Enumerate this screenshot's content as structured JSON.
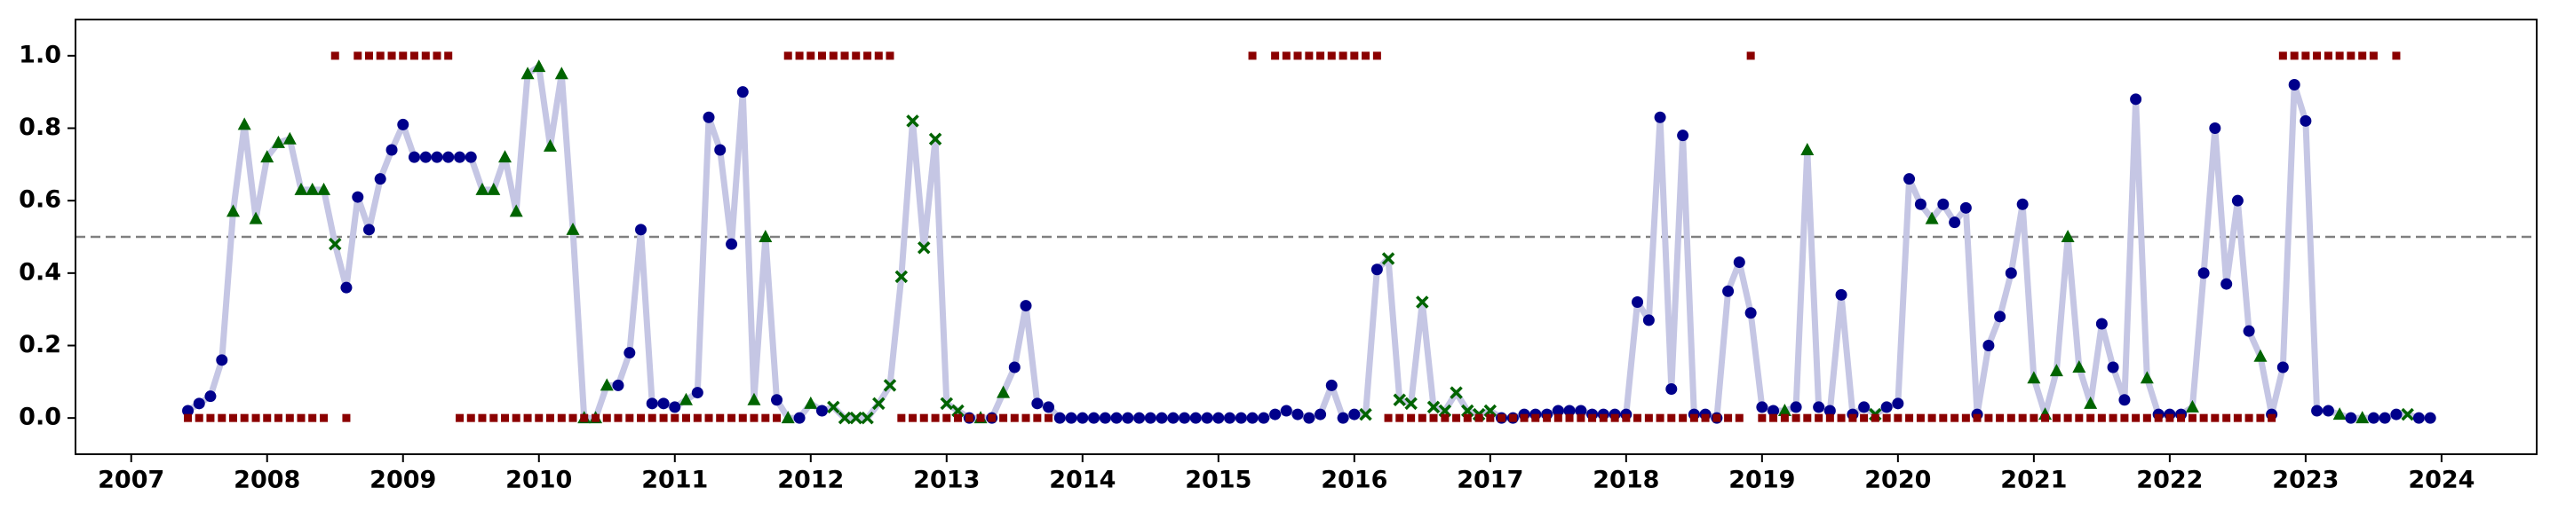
{
  "chart_data": {
    "type": "line",
    "xlim": [
      2006.59,
      2024.7
    ],
    "ylim": [
      -0.1,
      1.1
    ],
    "xticks": [
      2007,
      2008,
      2009,
      2010,
      2011,
      2012,
      2013,
      2014,
      2015,
      2016,
      2017,
      2018,
      2019,
      2020,
      2021,
      2022,
      2023,
      2024
    ],
    "yticks": [
      {
        "value": 0,
        "label": "0.0"
      },
      {
        "value": 0.2,
        "label": "0.2"
      },
      {
        "value": 0.4,
        "label": "0.4"
      },
      {
        "value": 0.6,
        "label": "0.6"
      },
      {
        "value": 0.8,
        "label": "0.8"
      },
      {
        "value": 1,
        "label": "1.0"
      }
    ],
    "threshold": 0.5,
    "threshold_color": "#808080",
    "x": [
      2007.417,
      2007.5,
      2007.583,
      2007.667,
      2007.75,
      2007.833,
      2007.917,
      2008,
      2008.083,
      2008.167,
      2008.25,
      2008.333,
      2008.417,
      2008.5,
      2008.583,
      2008.667,
      2008.75,
      2008.833,
      2008.917,
      2009,
      2009.083,
      2009.167,
      2009.25,
      2009.333,
      2009.417,
      2009.5,
      2009.583,
      2009.667,
      2009.75,
      2009.833,
      2009.917,
      2010,
      2010.083,
      2010.167,
      2010.25,
      2010.333,
      2010.417,
      2010.5,
      2010.583,
      2010.667,
      2010.75,
      2010.833,
      2010.917,
      2011,
      2011.083,
      2011.167,
      2011.25,
      2011.333,
      2011.417,
      2011.5,
      2011.583,
      2011.667,
      2011.75,
      2011.833,
      2011.917,
      2012,
      2012.083,
      2012.167,
      2012.25,
      2012.333,
      2012.417,
      2012.5,
      2012.583,
      2012.667,
      2012.75,
      2012.833,
      2012.917,
      2013,
      2013.083,
      2013.167,
      2013.25,
      2013.333,
      2013.417,
      2013.5,
      2013.583,
      2013.667,
      2013.75,
      2013.833,
      2013.917,
      2014,
      2014.083,
      2014.167,
      2014.25,
      2014.333,
      2014.417,
      2014.5,
      2014.583,
      2014.667,
      2014.75,
      2014.833,
      2014.917,
      2015,
      2015.083,
      2015.167,
      2015.25,
      2015.333,
      2015.417,
      2015.5,
      2015.583,
      2015.667,
      2015.75,
      2015.833,
      2015.917,
      2016,
      2016.083,
      2016.167,
      2016.25,
      2016.333,
      2016.417,
      2016.5,
      2016.583,
      2016.667,
      2016.75,
      2016.833,
      2016.917,
      2017,
      2017.083,
      2017.167,
      2017.25,
      2017.333,
      2017.417,
      2017.5,
      2017.583,
      2017.667,
      2017.75,
      2017.833,
      2017.917,
      2018,
      2018.083,
      2018.167,
      2018.25,
      2018.333,
      2018.417,
      2018.5,
      2018.583,
      2018.667,
      2018.75,
      2018.833,
      2018.917,
      2019,
      2019.083,
      2019.167,
      2019.25,
      2019.333,
      2019.417,
      2019.5,
      2019.583,
      2019.667,
      2019.75,
      2019.833,
      2019.917,
      2020,
      2020.083,
      2020.167,
      2020.25,
      2020.333,
      2020.417,
      2020.5,
      2020.583,
      2020.667,
      2020.75,
      2020.833,
      2020.917,
      2021,
      2021.083,
      2021.167,
      2021.25,
      2021.333,
      2021.417,
      2021.5,
      2021.583,
      2021.667,
      2021.75,
      2021.833,
      2021.917,
      2022,
      2022.083,
      2022.167,
      2022.25,
      2022.333,
      2022.417,
      2022.5,
      2022.583,
      2022.667,
      2022.75,
      2022.833,
      2022.917,
      2023,
      2023.083,
      2023.167,
      2023.25,
      2023.333,
      2023.417,
      2023.5,
      2023.583,
      2023.667,
      2023.75,
      2023.833,
      2023.917
    ],
    "series": [
      {
        "line_color": "#c5c6e4",
        "marker_colors": {
          "o": "#00008b",
          "^": "#006400",
          "x": "#006400"
        },
        "markers": "oooo^^^^^^^^^xoooooooooooo^^^^^^^^^^^^oooooo^ooooo^^o^o^oxxxxxxxxxxxxo^o^oooooooooooooooooooooooooooooooxoxxxxxxxxxxooooooooooooooooooooooooo^o^oooooxoooo^oooooooo^^^^^^oooo^ooo^ooooo^oooooo^o^oooxooxxxxxxxoxoo",
        "values": [
          0.02,
          0.04,
          0.06,
          0.16,
          0.57,
          0.81,
          0.55,
          0.72,
          0.76,
          0.77,
          0.63,
          0.63,
          0.63,
          0.48,
          0.36,
          0.61,
          0.52,
          0.66,
          0.74,
          0.81,
          0.72,
          0.72,
          0.72,
          0.72,
          0.72,
          0.72,
          0.63,
          0.63,
          0.72,
          0.57,
          0.95,
          0.97,
          0.75,
          0.95,
          0.52,
          0,
          0,
          0.09,
          0.09,
          0.18,
          0.52,
          0.04,
          0.04,
          0.03,
          0.05,
          0.07,
          0.83,
          0.74,
          0.48,
          0.9,
          0.05,
          0.5,
          0.05,
          0,
          0,
          0.04,
          0.02,
          0.03,
          0,
          0,
          0,
          0.04,
          0.09,
          0.39,
          0.82,
          0.47,
          0.77,
          0.04,
          0.02,
          0,
          0,
          0,
          0.07,
          0.14,
          0.31,
          0.04,
          0.03,
          0,
          0,
          0,
          0,
          0,
          0,
          0,
          0,
          0,
          0,
          0,
          0,
          0,
          0,
          0,
          0,
          0,
          0,
          0,
          0.01,
          0.02,
          0.01,
          0,
          0.01,
          0.09,
          0,
          0.01,
          0.01,
          0.41,
          0.44,
          0.05,
          0.04,
          0.32,
          0.03,
          0.02,
          0.07,
          0.02,
          0.01,
          0.02,
          0,
          0,
          0.01,
          0.01,
          0.01,
          0.02,
          0.02,
          0.02,
          0.01,
          0.01,
          0.01,
          0.01,
          0.32,
          0.27,
          0.83,
          0.08,
          0.78,
          0.01,
          0.01,
          0,
          0.35,
          0.43,
          0.29,
          0.03,
          0.02,
          0.02,
          0.03,
          0.74,
          0.03,
          0.02,
          0.34,
          0.01,
          0.03,
          0.01,
          0.03,
          0.04,
          0.66,
          0.59,
          0.55,
          0.59,
          0.54,
          0.58,
          0.01,
          0.2,
          0.28,
          0.4,
          0.59,
          0.11,
          0.01,
          0.13,
          0.5,
          0.14,
          0.04,
          0.26,
          0.14,
          0.05,
          0.88,
          0.11,
          0.01,
          0.01,
          0.01,
          0.03,
          0.4,
          0.8,
          0.37,
          0.6,
          0.24,
          0.17,
          0.01,
          0.14,
          0.92,
          0.82,
          0.02,
          0.02,
          0.01,
          0,
          0,
          0,
          0,
          0.01,
          0.01,
          0,
          0
        ]
      },
      {
        "marker": "s",
        "color": "#8b0000",
        "values": [
          0,
          0,
          0,
          0,
          0,
          0,
          0,
          0,
          0,
          0,
          0,
          0,
          0,
          1,
          0,
          1,
          1,
          1,
          1,
          1,
          1,
          1,
          1,
          1,
          0,
          0,
          0,
          0,
          0,
          0,
          0,
          0,
          0,
          0,
          0,
          0,
          0,
          0,
          0,
          0,
          0,
          0,
          0,
          0,
          0,
          0,
          0,
          0,
          0,
          0,
          0,
          0,
          0,
          1,
          1,
          1,
          1,
          1,
          1,
          1,
          1,
          1,
          1,
          0,
          0,
          0,
          0,
          0,
          0,
          0,
          0,
          0,
          0,
          0,
          0,
          0,
          0,
          null,
          null,
          null,
          null,
          null,
          null,
          null,
          null,
          null,
          null,
          null,
          null,
          null,
          null,
          null,
          null,
          null,
          1,
          null,
          1,
          1,
          1,
          1,
          1,
          1,
          1,
          1,
          1,
          1,
          0,
          0,
          0,
          0,
          0,
          0,
          0,
          0,
          0,
          0,
          0,
          0,
          0,
          0,
          0,
          0,
          0,
          0,
          0,
          0,
          0,
          0,
          0,
          0,
          0,
          0,
          0,
          0,
          0,
          0,
          0,
          0,
          1,
          0,
          0,
          0,
          0,
          0,
          0,
          0,
          0,
          0,
          0,
          0,
          0,
          0,
          0,
          0,
          0,
          0,
          0,
          0,
          0,
          0,
          0,
          0,
          0,
          0,
          0,
          0,
          0,
          0,
          0,
          0,
          0,
          0,
          0,
          0,
          0,
          0,
          0,
          0,
          0,
          0,
          0,
          0,
          0,
          0,
          0,
          1,
          1,
          1,
          1,
          1,
          1,
          1,
          1,
          1,
          null,
          1,
          null,
          null,
          null
        ]
      }
    ]
  }
}
